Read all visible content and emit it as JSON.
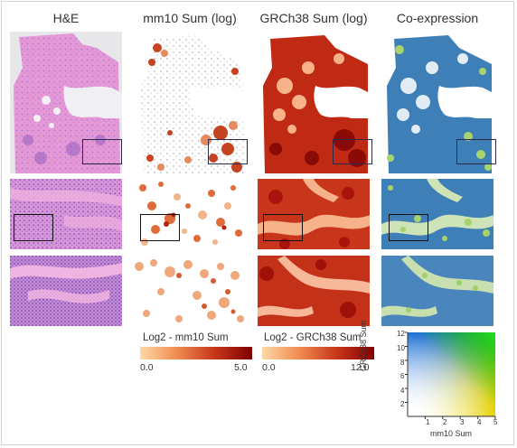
{
  "columns": [
    {
      "id": "he",
      "title": "H&E"
    },
    {
      "id": "mm10",
      "title": "mm10 Sum (log)"
    },
    {
      "id": "grch38",
      "title": "GRCh38 Sum (log)"
    },
    {
      "id": "coexp",
      "title": "Co-expression"
    }
  ],
  "rows": [
    "overview",
    "zoom",
    "closer-zoom"
  ],
  "legends": {
    "mm10": {
      "title": "Log2 - mm10 Sum",
      "min": "0.0",
      "max": "5.0",
      "color_low": "#fdd9a6",
      "color_high": "#7f0000"
    },
    "grch38": {
      "title": "Log2 - GRCh38 Sum",
      "min": "0.0",
      "max": "12.0",
      "color_low": "#fdd9a6",
      "color_high": "#7f0000"
    },
    "coexp": {
      "x_label": "mm10 Sum",
      "y_label": "GRCh38 Sum",
      "x_ticks": [
        "1",
        "2",
        "3",
        "4",
        "5"
      ],
      "y_ticks": [
        "2",
        "4",
        "6",
        "8",
        "10",
        "12"
      ],
      "colors": {
        "origin": "#ffffff",
        "x_max": "#e6d200",
        "y_max": "#1a6fd6",
        "xy_max": "#1ee61e"
      }
    }
  },
  "palette": {
    "he_pink": "#e8a0d8",
    "he_purple": "#8a5bb8",
    "red_dark": "#b0100c",
    "red_light": "#f7b58a",
    "coexp_blue": "#4f8fc6",
    "coexp_green": "#9fd06a"
  }
}
